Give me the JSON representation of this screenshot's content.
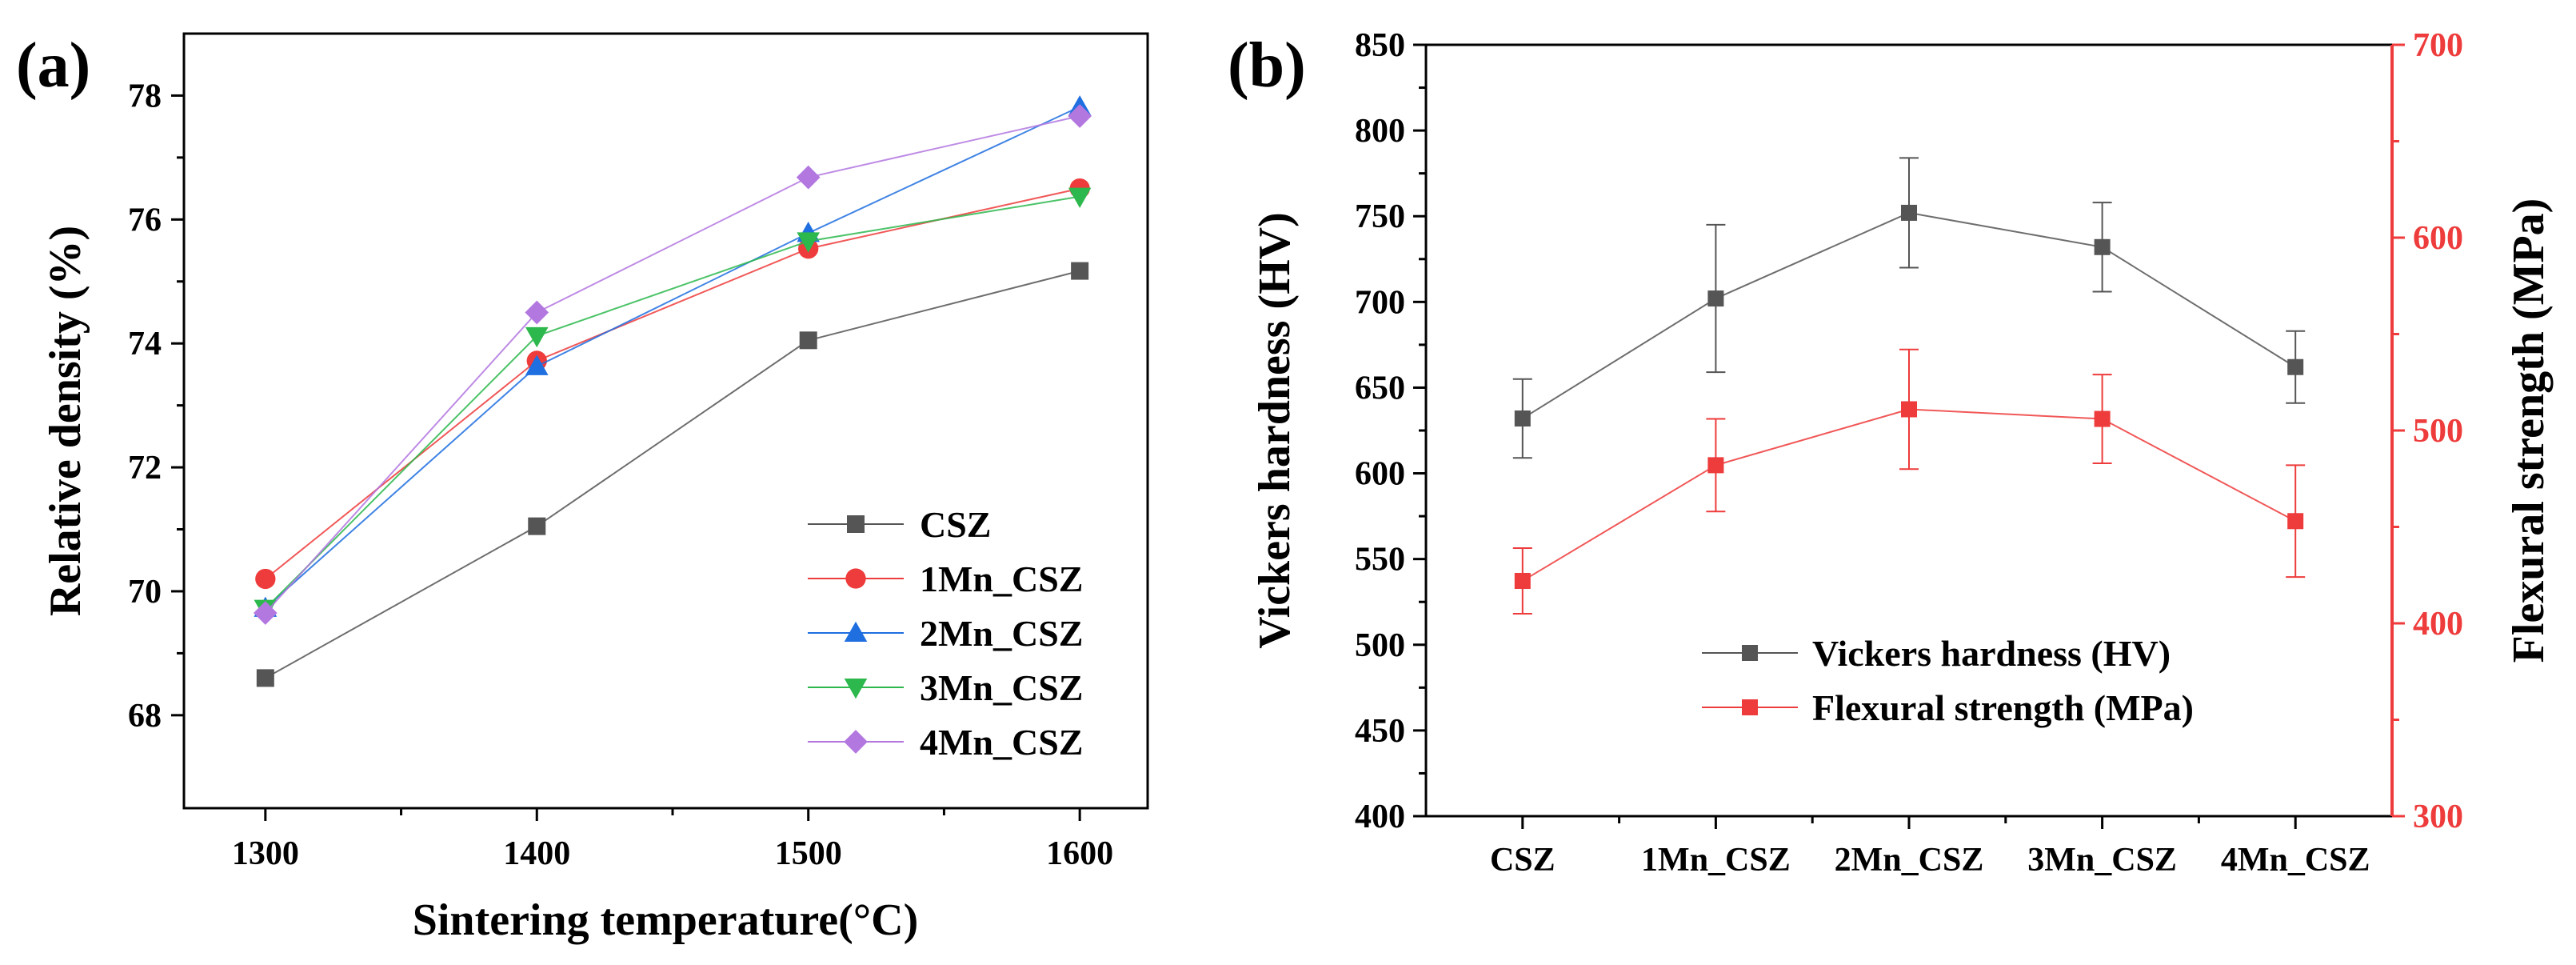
{
  "chart_data": [
    {
      "panel_label": "(a)",
      "type": "line",
      "title": "",
      "xlabel": "Sintering temperature(°C)",
      "ylabel": "Relative density (%)",
      "xlim": [
        1270,
        1625
      ],
      "ylim": [
        66.5,
        79.0
      ],
      "xticks": [
        1300,
        1400,
        1500,
        1600
      ],
      "yticks": [
        68,
        70,
        72,
        74,
        76,
        78
      ],
      "x": [
        1300,
        1400,
        1500,
        1600
      ],
      "legend_position": "lower-right",
      "series": [
        {
          "name": "CSZ",
          "values": [
            68.6,
            71.05,
            74.05,
            75.17
          ],
          "color": "#555555",
          "marker": "square"
        },
        {
          "name": "1Mn_CSZ",
          "values": [
            70.2,
            73.72,
            75.53,
            76.5
          ],
          "color": "#ee3b3b",
          "marker": "circle"
        },
        {
          "name": "2Mn_CSZ",
          "values": [
            69.73,
            73.63,
            75.78,
            77.82
          ],
          "color": "#1f6fe0",
          "marker": "triangle-up"
        },
        {
          "name": "3Mn_CSZ",
          "values": [
            69.72,
            74.12,
            75.65,
            76.37
          ],
          "color": "#2db84d",
          "marker": "triangle-down"
        },
        {
          "name": "4Mn_CSZ",
          "values": [
            69.65,
            74.5,
            76.68,
            77.67
          ],
          "color": "#b377e0",
          "marker": "diamond"
        }
      ]
    },
    {
      "panel_label": "(b)",
      "type": "line",
      "title": "",
      "xlabel": "",
      "categories": [
        "CSZ",
        "1Mn_CSZ",
        "2Mn_CSZ",
        "3Mn_CSZ",
        "4Mn_CSZ"
      ],
      "ylabel": "Vickers hardness (HV)",
      "ylim": [
        400,
        850
      ],
      "yticks": [
        400,
        450,
        500,
        550,
        600,
        650,
        700,
        750,
        800,
        850
      ],
      "y2label": "Flexural strength (MPa)",
      "y2lim": [
        300,
        700
      ],
      "y2ticks": [
        300,
        400,
        500,
        600,
        700
      ],
      "legend_position": "lower-center",
      "series": [
        {
          "name": "Vickers hardness (HV)",
          "axis": "left",
          "values": [
            632,
            702,
            752,
            732,
            662
          ],
          "error": [
            23,
            43,
            32,
            26,
            21
          ],
          "color": "#555555",
          "marker": "square"
        },
        {
          "name": "Flexural strength (MPa)",
          "axis": "right",
          "values": [
            422,
            482,
            511,
            506,
            453
          ],
          "error": [
            17,
            24,
            31,
            23,
            29
          ],
          "color": "#ee3b3b",
          "marker": "square"
        }
      ]
    }
  ]
}
